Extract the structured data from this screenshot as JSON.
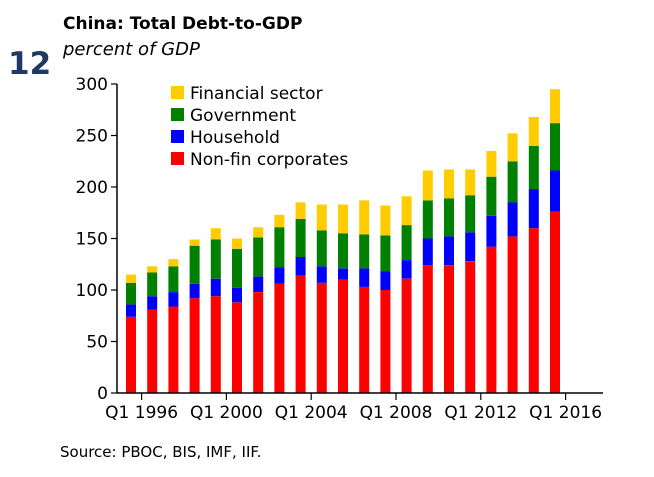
{
  "exhibit_number": "12",
  "source": "Source: PBOC, BIS, IMF, IIF.",
  "chart_data": {
    "type": "bar",
    "stacked": true,
    "title": "China: Total Debt-to-GDP",
    "subtitle": "percent of GDP",
    "xlabel": "",
    "ylabel": "",
    "ylim": [
      0,
      300
    ],
    "yticks": [
      0,
      50,
      100,
      150,
      200,
      250,
      300
    ],
    "grid": false,
    "legend_position": "top-left",
    "x_tick_labels": [
      "Q1 1996",
      "Q1 2000",
      "Q1 2004",
      "Q1 2008",
      "Q1 2012",
      "Q1 2016"
    ],
    "categories": [
      "1995",
      "1996",
      "1997",
      "1998",
      "1999",
      "2000",
      "2001",
      "2002",
      "2003",
      "2004",
      "2005",
      "2006",
      "2007",
      "2008",
      "2009",
      "2010",
      "2011",
      "2012",
      "2013",
      "2014",
      "2015",
      "2016"
    ],
    "series": [
      {
        "name": "Non-fin corporates",
        "color": "#ff0000",
        "values": [
          74,
          81,
          84,
          92,
          94,
          88,
          98,
          106,
          114,
          107,
          110,
          103,
          100,
          111,
          124,
          124,
          128,
          142,
          152,
          160,
          176,
          0
        ]
      },
      {
        "name": "Household",
        "color": "#0000ff",
        "values": [
          12,
          13,
          14,
          14,
          17,
          14,
          15,
          16,
          18,
          16,
          11,
          18,
          18,
          18,
          26,
          28,
          28,
          30,
          33,
          38,
          40,
          0
        ]
      },
      {
        "name": "Government",
        "color": "#008000",
        "values": [
          21,
          23,
          25,
          37,
          38,
          38,
          38,
          39,
          37,
          35,
          34,
          33,
          35,
          34,
          37,
          37,
          36,
          38,
          40,
          42,
          46,
          0
        ]
      },
      {
        "name": "Financial sector",
        "color": "#ffcc00",
        "values": [
          8,
          6,
          7,
          6,
          11,
          10,
          10,
          12,
          16,
          25,
          28,
          33,
          29,
          28,
          29,
          28,
          25,
          25,
          27,
          28,
          33,
          0
        ]
      }
    ]
  }
}
